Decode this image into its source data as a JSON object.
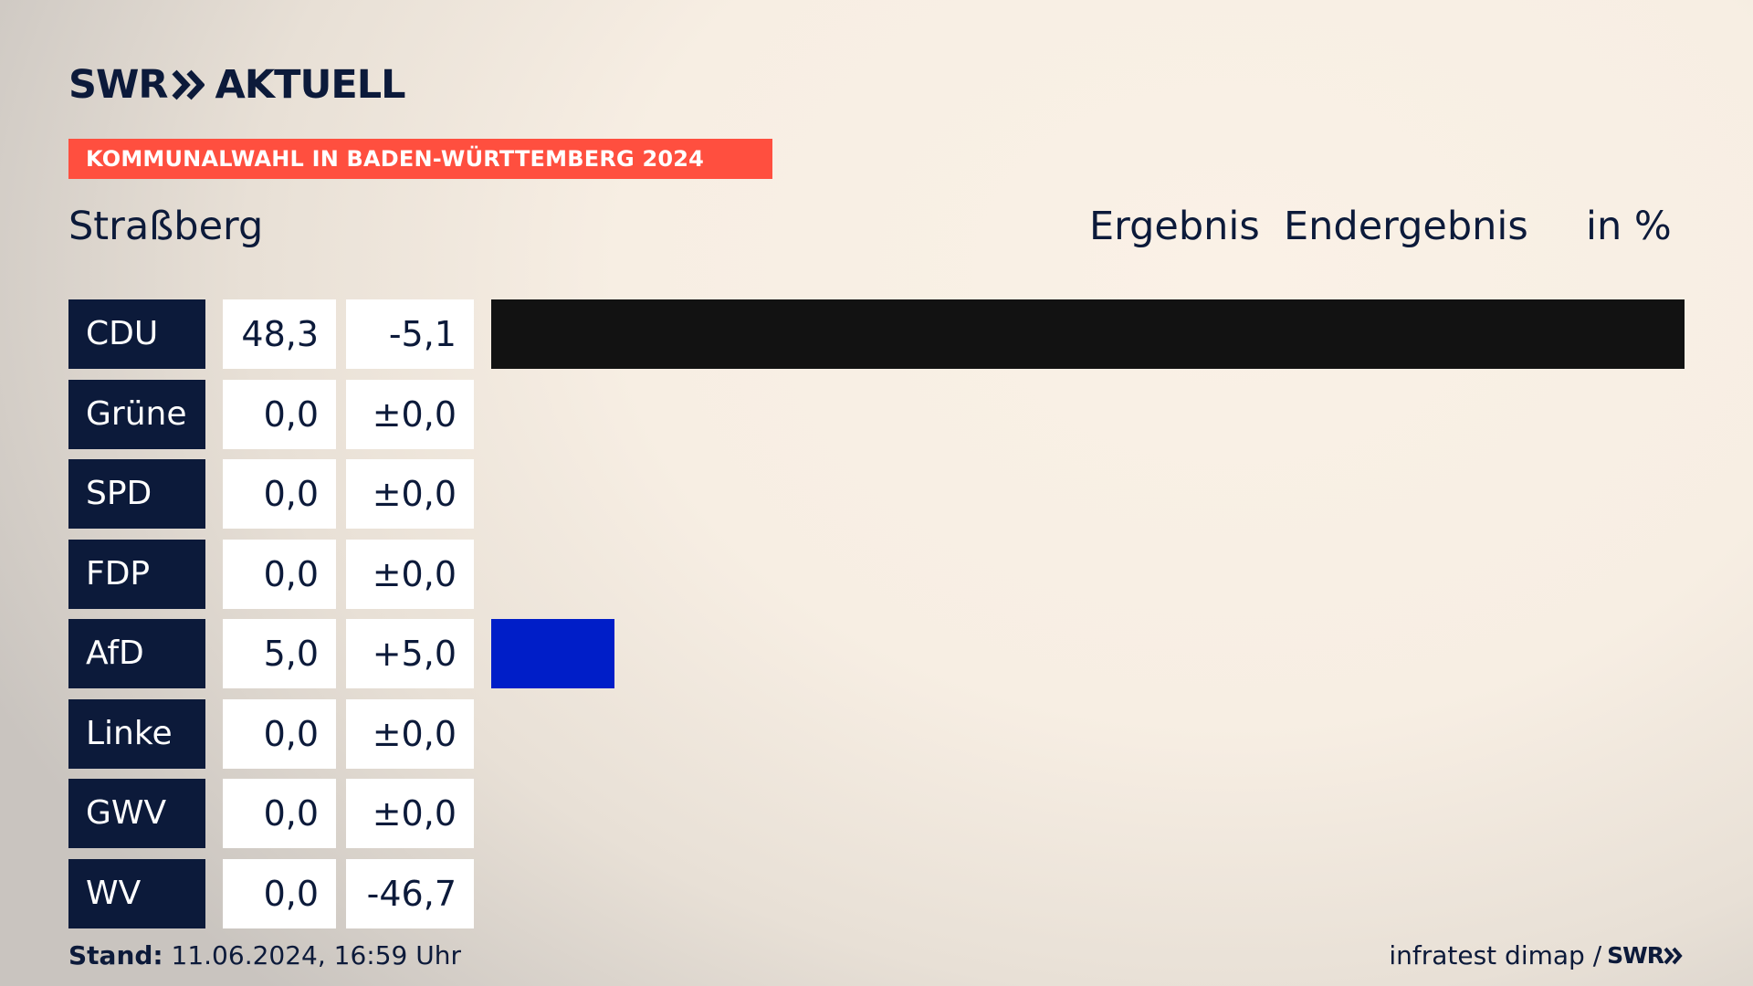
{
  "header": {
    "logo_text": "SWR",
    "logo_suffix": "AKTUELL",
    "banner": "KOMMUNALWAHL IN BADEN-WÜRTTEMBERG 2024",
    "place": "Straßberg",
    "col_result": "Ergebnis",
    "col_final": "Endergebnis",
    "col_unit": "in %"
  },
  "colors": {
    "navy": "#0c1a3a",
    "banner": "#ff4f3f",
    "cdu": "#121212",
    "afd": "#001ec8"
  },
  "chart_data": {
    "type": "bar",
    "orientation": "horizontal",
    "categories": [
      "CDU",
      "Grüne",
      "SPD",
      "FDP",
      "AfD",
      "Linke",
      "GWV",
      "WV"
    ],
    "values": [
      48.3,
      0.0,
      0.0,
      0.0,
      5.0,
      0.0,
      0.0,
      0.0
    ],
    "labels": [
      "48,3",
      "0,0",
      "0,0",
      "0,0",
      "5,0",
      "0,0",
      "0,0",
      "0,0"
    ],
    "changes": [
      "-5,1",
      "±0,0",
      "±0,0",
      "±0,0",
      "+5,0",
      "±0,0",
      "±0,0",
      "-46,7"
    ],
    "bar_colors": [
      "#121212",
      "#121212",
      "#121212",
      "#121212",
      "#001ec8",
      "#121212",
      "#121212",
      "#121212"
    ],
    "xlim": [
      0,
      48.3
    ],
    "grid": false,
    "legend": "none"
  },
  "footer": {
    "stand_label": "Stand:",
    "stand_value": "11.06.2024, 16:59 Uhr",
    "source": "infratest dimap /",
    "logo_text": "SWR"
  }
}
